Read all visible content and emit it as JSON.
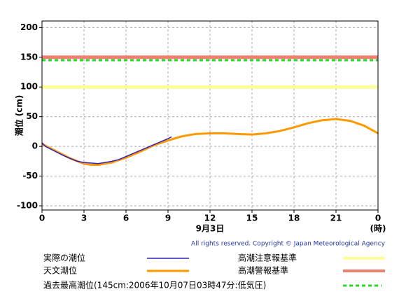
{
  "chart_data": {
    "type": "line",
    "ylabel": "潮位 (cm)",
    "xlabel": "9月3日",
    "xunit": "(時)",
    "credit": "All rights reserved. Copyright © Japan Meteorological Agency",
    "xlim": [
      0,
      24
    ],
    "xticks": [
      0,
      3,
      6,
      9,
      12,
      15,
      18,
      21,
      {
        "value": 24,
        "label": "0"
      }
    ],
    "ylim": [
      -107,
      211
    ],
    "yticks": [
      200,
      150,
      100,
      50,
      0,
      -50,
      -100
    ],
    "grid": true,
    "series": [
      {
        "name": "実際の潮位",
        "color": "#3322bb",
        "x": [
          0,
          0.25,
          0.5,
          0.75,
          1,
          1.5,
          2,
          2.5,
          3,
          3.5,
          4,
          4.5,
          5,
          5.5,
          6,
          6.5,
          7,
          7.5,
          8,
          8.5,
          9,
          9.25
        ],
        "values": [
          6,
          0,
          -3,
          -6,
          -9,
          -15,
          -20,
          -25,
          -27,
          -28,
          -29,
          -27,
          -25,
          -22,
          -17,
          -12,
          -7,
          -2,
          3,
          8,
          13,
          16
        ]
      },
      {
        "name": "天文潮位",
        "color": "#ff9900",
        "x": [
          0,
          1,
          2,
          3,
          3.5,
          4,
          5,
          6,
          7,
          8,
          9,
          10,
          11,
          12,
          13,
          14,
          15,
          16,
          17,
          18,
          19,
          20,
          21,
          22,
          23,
          24
        ],
        "values": [
          4,
          -8,
          -20,
          -29,
          -31,
          -31,
          -27,
          -19,
          -9,
          2,
          10,
          17,
          21,
          22,
          22,
          21,
          20,
          22,
          26,
          32,
          39,
          44,
          46,
          43,
          35,
          22
        ]
      }
    ],
    "thresholds": [
      {
        "name": "高潮注意報基準",
        "value": 100,
        "color": "#ffff99"
      },
      {
        "name": "高潮警報基準",
        "value": 150,
        "color": "#f08070"
      },
      {
        "name": "過去最高潮位(145cm:2006年10月07日03時47分:低気圧)",
        "value": 145,
        "color": "#22dd22",
        "dashed": true
      }
    ]
  }
}
